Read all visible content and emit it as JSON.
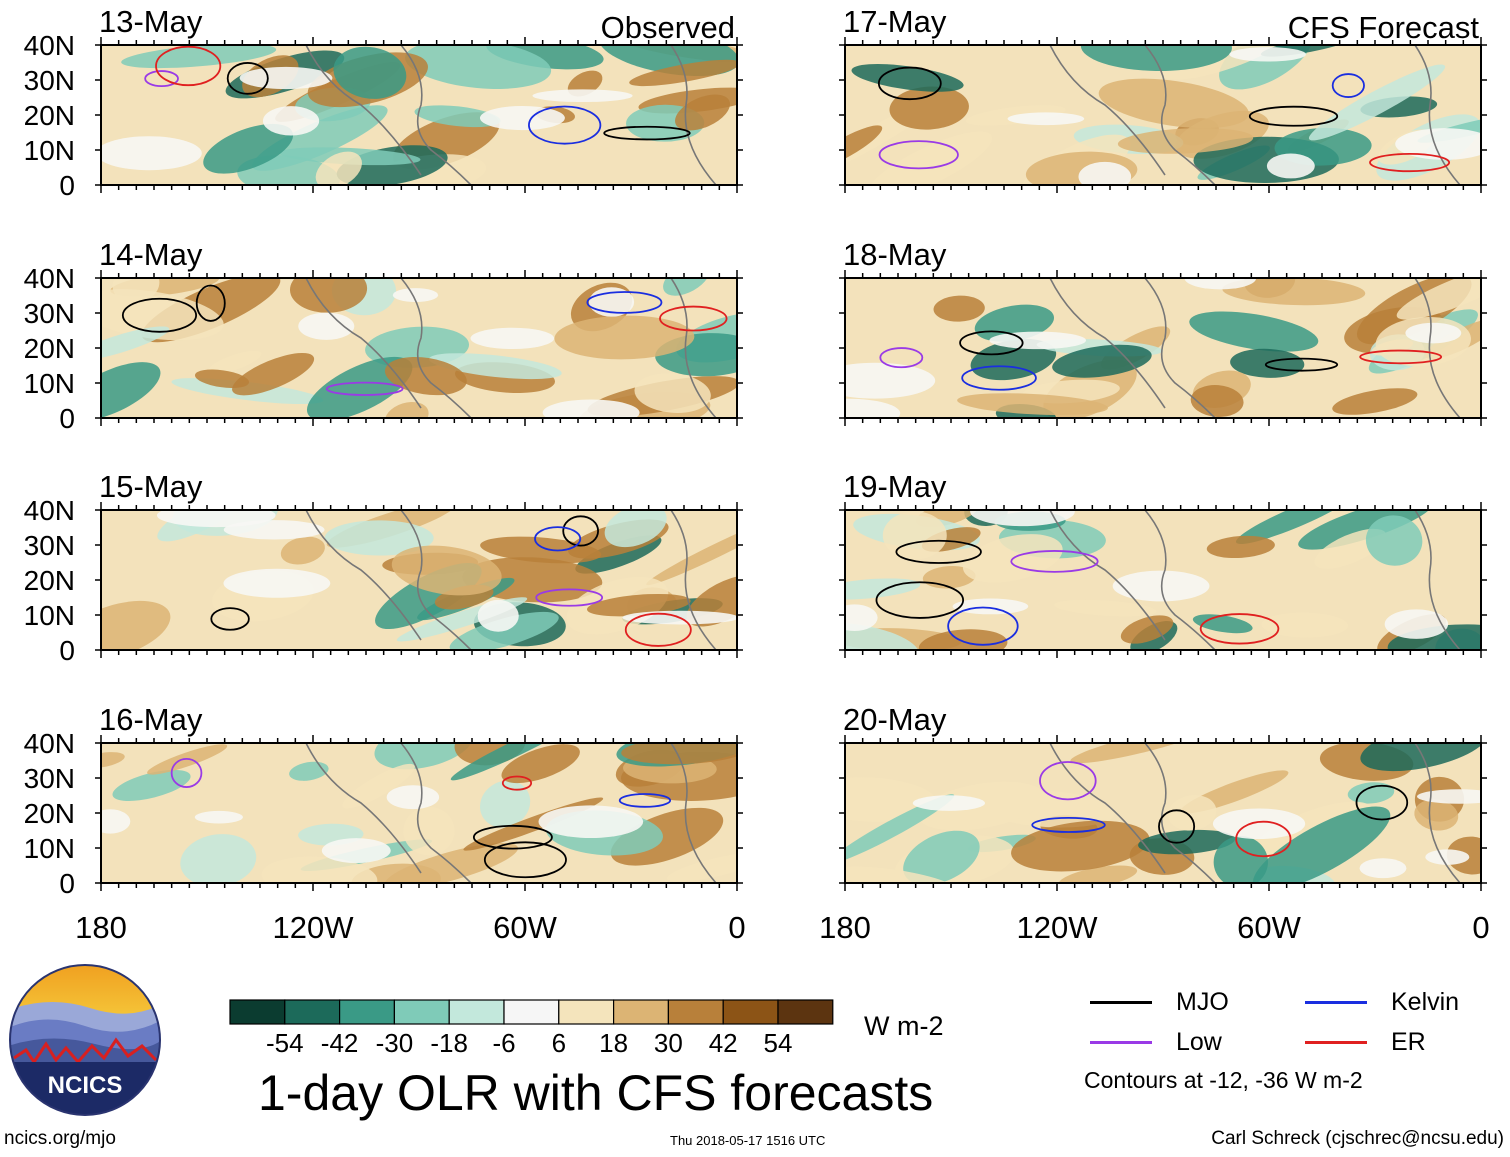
{
  "figure": {
    "title": "1-day OLR with CFS forecasts",
    "units": "W m-2",
    "url": "ncics.org/mjo",
    "timestamp": "Thu 2018-05-17 1516 UTC",
    "credit": "Carl Schreck (cjschrec@ncsu.edu)",
    "logo_text": "NCICS",
    "contour_note": "Contours at -12, -36 W m-2"
  },
  "columns": [
    {
      "label": "Observed",
      "dates": [
        "13-May",
        "14-May",
        "15-May",
        "16-May"
      ]
    },
    {
      "label": "CFS Forecast",
      "dates": [
        "17-May",
        "18-May",
        "19-May",
        "20-May"
      ]
    }
  ],
  "axes": {
    "y_ticks": [
      "40N",
      "30N",
      "20N",
      "10N",
      "0"
    ],
    "x_ticks": [
      "180",
      "120W",
      "60W",
      "0"
    ]
  },
  "colorbar": {
    "labels": [
      "-54",
      "-42",
      "-30",
      "-18",
      "-6",
      "6",
      "18",
      "30",
      "42",
      "54"
    ],
    "colors": [
      "#0b3c30",
      "#1c6a5a",
      "#3a9a86",
      "#7fcbb8",
      "#c3e8dc",
      "#f6f6f6",
      "#f4e4bc",
      "#dcb474",
      "#b8803a",
      "#8c5416",
      "#5c3410"
    ]
  },
  "legend": [
    {
      "name": "MJO",
      "color": "#000000"
    },
    {
      "name": "Kelvin",
      "color": "#1a2ee0"
    },
    {
      "name": "Low",
      "color": "#9a3ae6"
    },
    {
      "name": "ER",
      "color": "#e02020"
    }
  ]
}
